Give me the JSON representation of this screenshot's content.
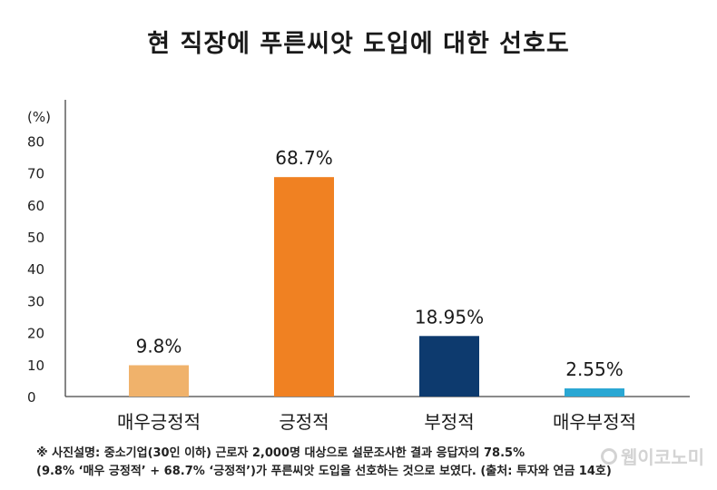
{
  "title": "현 직장에 푸른씨앗 도입에 대한 선호도",
  "chart_data": {
    "type": "bar",
    "unit_label": "(%)",
    "categories": [
      "매우긍정적",
      "긍정적",
      "부정적",
      "매우부정적"
    ],
    "values": [
      9.8,
      68.7,
      18.95,
      2.55
    ],
    "value_labels": [
      "9.8%",
      "68.7%",
      "18.95%",
      "2.55%"
    ],
    "colors": [
      "#F0B26B",
      "#F08122",
      "#0D3A6E",
      "#2AA7D3"
    ],
    "ylim": [
      0,
      80
    ],
    "yticks": [
      0,
      10,
      20,
      30,
      40,
      50,
      60,
      70,
      80
    ],
    "grid": false
  },
  "note": {
    "line1": "※ 사진설명: 중소기업(30인 이하) 근로자 2,000명 대상으로 설문조사한 결과 응답자의 78.5%",
    "line2": "(9.8% ‘매우 긍정적’ + 68.7% ‘긍정적’)가 푸른씨앗 도입을 선호하는 것으로 보였다. (출처: 투자와 연금 14호)"
  },
  "watermark": "웹이코노미"
}
